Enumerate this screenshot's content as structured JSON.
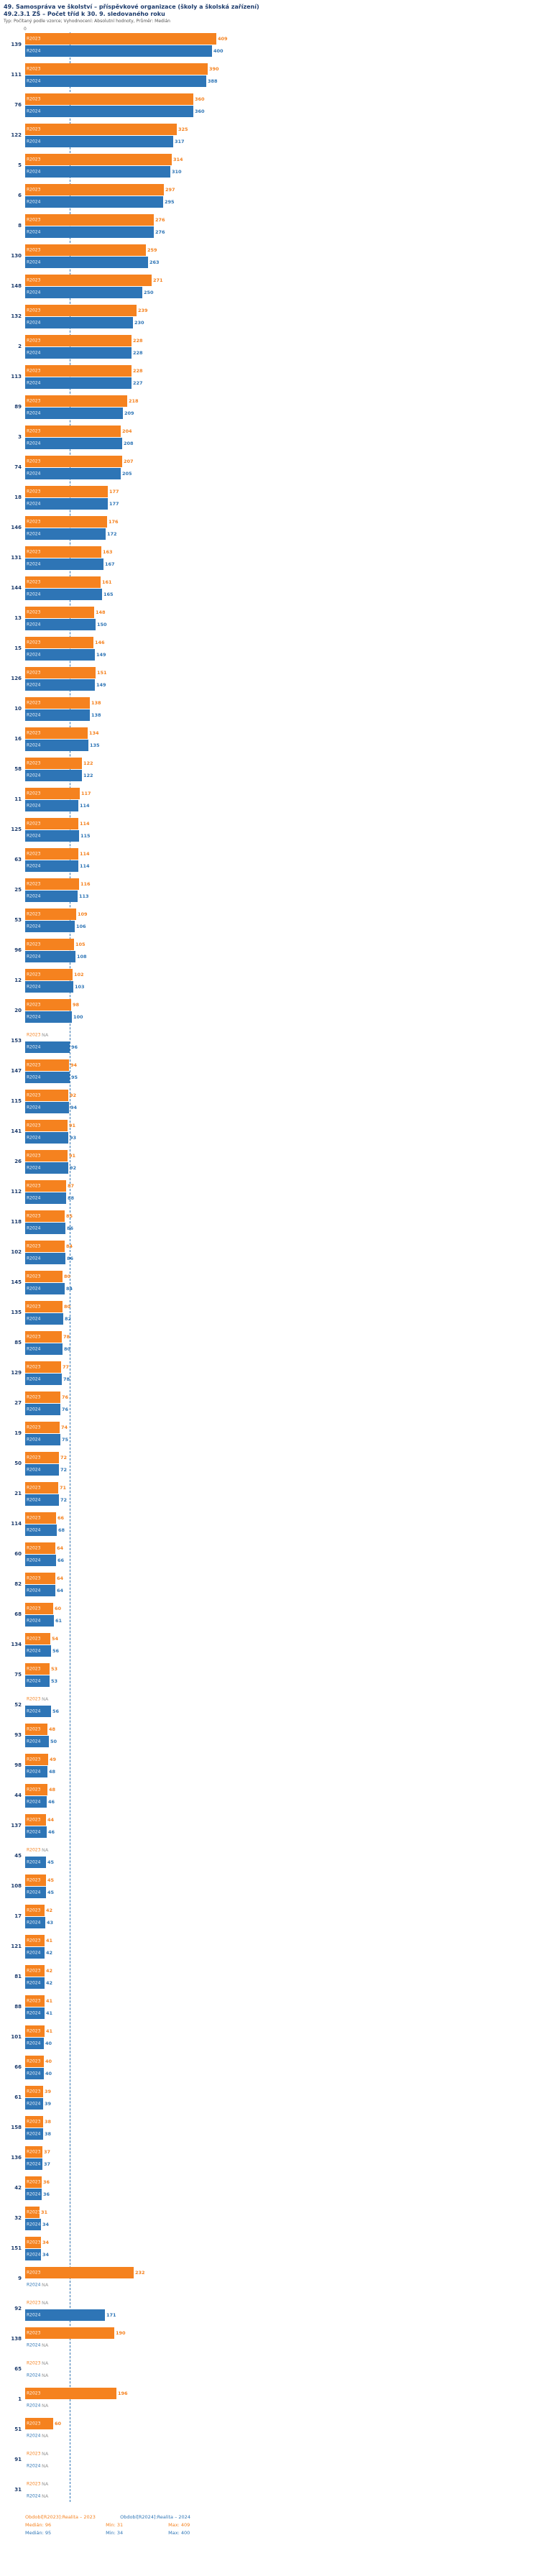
{
  "header": {
    "title": "49. Samospráva ve školství – příspěvkové organizace (školy a školská zařízení)",
    "subtitle": "49.2.3.1 ZŠ – Počet tříd k 30. 9. sledovaného roku",
    "meta": "Typ: Počítaný podle vzorce; Vyhodnocení: Absolutní hodnoty, Průměr: Medián"
  },
  "axis": {
    "origin_tick": "0"
  },
  "colors": {
    "r2023": "#f5821f",
    "r2024": "#2e75b6",
    "na": "#999999",
    "title": "#1b3a6b"
  },
  "legend": {
    "r2023_label": "Období[R2023]:Realita – 2023",
    "r2024_label": "Období[R2024]:Realita – 2024",
    "r2023_stats": {
      "median": "Medián: 96",
      "min": "Min: 31",
      "max": "Max: 409"
    },
    "r2024_stats": {
      "median": "Medián: 95",
      "min": "Min: 34",
      "max": "Max: 400"
    }
  },
  "chart_data": {
    "type": "bar",
    "orientation": "horizontal",
    "series_names": [
      "R2023",
      "R2024"
    ],
    "x_range": [
      0,
      409
    ],
    "medians": {
      "R2023": 96,
      "R2024": 95
    },
    "na_text": "NA",
    "rows": [
      {
        "id": "139",
        "R2023": 409,
        "R2024": 400
      },
      {
        "id": "111",
        "R2023": 390,
        "R2024": 388
      },
      {
        "id": "76",
        "R2023": 360,
        "R2024": 360
      },
      {
        "id": "122",
        "R2023": 325,
        "R2024": 317
      },
      {
        "id": "5",
        "R2023": 314,
        "R2024": 310
      },
      {
        "id": "6",
        "R2023": 297,
        "R2024": 295
      },
      {
        "id": "8",
        "R2023": 276,
        "R2024": 276
      },
      {
        "id": "130",
        "R2023": 259,
        "R2024": 263
      },
      {
        "id": "148",
        "R2023": 271,
        "R2024": 250
      },
      {
        "id": "132",
        "R2023": 239,
        "R2024": 230
      },
      {
        "id": "2",
        "R2023": 228,
        "R2024": 228
      },
      {
        "id": "113",
        "R2023": 228,
        "R2024": 227
      },
      {
        "id": "89",
        "R2023": 218,
        "R2024": 209
      },
      {
        "id": "3",
        "R2023": 204,
        "R2024": 208
      },
      {
        "id": "74",
        "R2023": 207,
        "R2024": 205
      },
      {
        "id": "18",
        "R2023": 177,
        "R2024": 177
      },
      {
        "id": "146",
        "R2023": 176,
        "R2024": 172
      },
      {
        "id": "131",
        "R2023": 163,
        "R2024": 167
      },
      {
        "id": "144",
        "R2023": 161,
        "R2024": 165
      },
      {
        "id": "13",
        "R2023": 148,
        "R2024": 150
      },
      {
        "id": "15",
        "R2023": 146,
        "R2024": 149
      },
      {
        "id": "126",
        "R2023": 151,
        "R2024": 149
      },
      {
        "id": "10",
        "R2023": 138,
        "R2024": 138
      },
      {
        "id": "16",
        "R2023": 134,
        "R2024": 135
      },
      {
        "id": "58",
        "R2023": 122,
        "R2024": 122
      },
      {
        "id": "11",
        "R2023": 117,
        "R2024": 114
      },
      {
        "id": "125",
        "R2023": 114,
        "R2024": 115
      },
      {
        "id": "63",
        "R2023": 114,
        "R2024": 114
      },
      {
        "id": "25",
        "R2023": 116,
        "R2024": 113
      },
      {
        "id": "53",
        "R2023": 109,
        "R2024": 106
      },
      {
        "id": "96",
        "R2023": 105,
        "R2024": 108
      },
      {
        "id": "12",
        "R2023": 102,
        "R2024": 103
      },
      {
        "id": "20",
        "R2023": 98,
        "R2024": 100
      },
      {
        "id": "153",
        "R2023": "NA",
        "R2024": 96
      },
      {
        "id": "147",
        "R2023": 94,
        "R2024": 95
      },
      {
        "id": "115",
        "R2023": 92,
        "R2024": 94
      },
      {
        "id": "141",
        "R2023": 91,
        "R2024": 93
      },
      {
        "id": "26",
        "R2023": 91,
        "R2024": 92
      },
      {
        "id": "112",
        "R2023": 87,
        "R2024": 88
      },
      {
        "id": "118",
        "R2023": 85,
        "R2024": 86
      },
      {
        "id": "102",
        "R2023": 84,
        "R2024": 86
      },
      {
        "id": "145",
        "R2023": 80,
        "R2024": 84
      },
      {
        "id": "135",
        "R2023": 80,
        "R2024": 82
      },
      {
        "id": "85",
        "R2023": 78,
        "R2024": 80
      },
      {
        "id": "129",
        "R2023": 77,
        "R2024": 78
      },
      {
        "id": "27",
        "R2023": 76,
        "R2024": 76
      },
      {
        "id": "19",
        "R2023": 74,
        "R2024": 75
      },
      {
        "id": "50",
        "R2023": 72,
        "R2024": 72
      },
      {
        "id": "21",
        "R2023": 71,
        "R2024": 72
      },
      {
        "id": "114",
        "R2023": 66,
        "R2024": 68
      },
      {
        "id": "60",
        "R2023": 64,
        "R2024": 66
      },
      {
        "id": "82",
        "R2023": 64,
        "R2024": 64
      },
      {
        "id": "68",
        "R2023": 60,
        "R2024": 61
      },
      {
        "id": "134",
        "R2023": 54,
        "R2024": 56
      },
      {
        "id": "75",
        "R2023": 53,
        "R2024": 53
      },
      {
        "id": "52",
        "R2023": "NA",
        "R2024": 56
      },
      {
        "id": "93",
        "R2023": 48,
        "R2024": 50
      },
      {
        "id": "98",
        "R2023": 49,
        "R2024": 48
      },
      {
        "id": "44",
        "R2023": 48,
        "R2024": 46
      },
      {
        "id": "137",
        "R2023": 44,
        "R2024": 46
      },
      {
        "id": "45",
        "R2023": "NA",
        "R2024": 45
      },
      {
        "id": "108",
        "R2023": 45,
        "R2024": 45
      },
      {
        "id": "17",
        "R2023": 42,
        "R2024": 43
      },
      {
        "id": "121",
        "R2023": 41,
        "R2024": 42
      },
      {
        "id": "81",
        "R2023": 42,
        "R2024": 42
      },
      {
        "id": "88",
        "R2023": 41,
        "R2024": 41
      },
      {
        "id": "101",
        "R2023": 41,
        "R2024": 40
      },
      {
        "id": "66",
        "R2023": 40,
        "R2024": 40
      },
      {
        "id": "61",
        "R2023": 39,
        "R2024": 39
      },
      {
        "id": "158",
        "R2023": 38,
        "R2024": 38
      },
      {
        "id": "136",
        "R2023": 37,
        "R2024": 37
      },
      {
        "id": "42",
        "R2023": 36,
        "R2024": 36
      },
      {
        "id": "32",
        "R2023": 31,
        "R2024": 34
      },
      {
        "id": "151",
        "R2023": 34,
        "R2024": 34
      },
      {
        "id": "9",
        "R2023": 232,
        "R2024": "NA"
      },
      {
        "id": "92",
        "R2023": "NA",
        "R2024": 171
      },
      {
        "id": "138",
        "R2023": 190,
        "R2024": "NA"
      },
      {
        "id": "65",
        "R2023": "NA",
        "R2024": "NA"
      },
      {
        "id": "1",
        "R2023": 196,
        "R2024": "NA"
      },
      {
        "id": "51",
        "R2023": 60,
        "R2024": "NA"
      },
      {
        "id": "91",
        "R2023": "NA",
        "R2024": "NA"
      },
      {
        "id": "31",
        "R2023": "NA",
        "R2024": "NA"
      }
    ]
  }
}
